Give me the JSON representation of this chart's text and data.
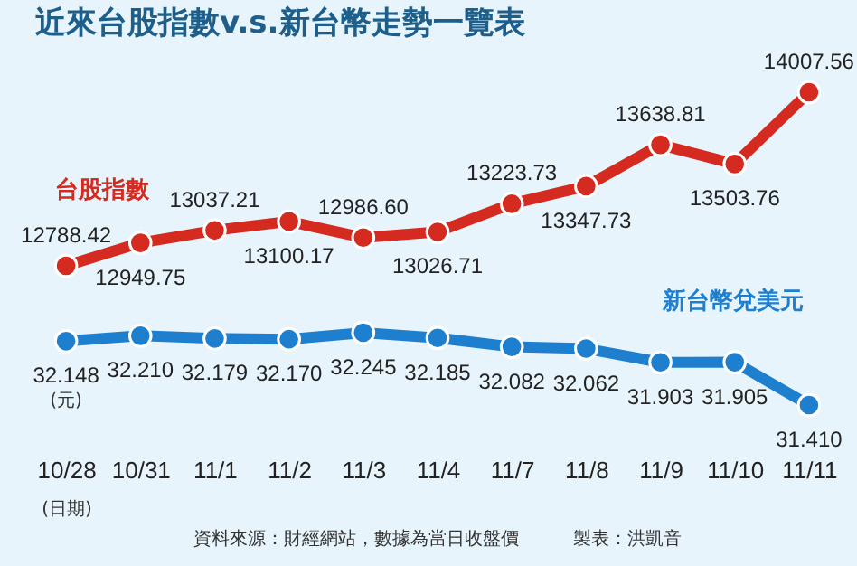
{
  "chart_data": [
    {
      "type": "line",
      "title": "近來台股指數v.s.新台幣走勢一覽表",
      "categories": [
        "10/28",
        "10/31",
        "11/1",
        "11/2",
        "11/3",
        "11/4",
        "11/7",
        "11/8",
        "11/9",
        "11/10",
        "11/11"
      ],
      "series": [
        {
          "name": "台股指數",
          "color": "#d42a1f",
          "values": [
            12788.42,
            12949.75,
            13037.21,
            13100.17,
            12986.6,
            13026.71,
            13223.73,
            13347.73,
            13638.81,
            13503.76,
            14007.56
          ],
          "value_labels": [
            "12788.42",
            "12949.75",
            "13037.21",
            "13100.17",
            "12986.60",
            "13026.71",
            "13223.73",
            "13347.73",
            "13638.81",
            "13503.76",
            "14007.56"
          ]
        }
      ],
      "marker": "circle",
      "tick_labels": false
    },
    {
      "type": "line",
      "xlabel": "(日期)",
      "categories": [
        "10/28",
        "10/31",
        "11/1",
        "11/2",
        "11/3",
        "11/4",
        "11/7",
        "11/8",
        "11/9",
        "11/10",
        "11/11"
      ],
      "series": [
        {
          "name": "新台幣兌美元",
          "color": "#1f7fcf",
          "values": [
            32.148,
            32.21,
            32.179,
            32.17,
            32.245,
            32.185,
            32.082,
            32.062,
            31.903,
            31.905,
            31.41
          ],
          "value_labels": [
            "32.148",
            "32.210",
            "32.179",
            "32.170",
            "32.245",
            "32.185",
            "32.082",
            "32.062",
            "31.903",
            "31.905",
            "31.410"
          ]
        }
      ],
      "marker": "circle",
      "annotations": [
        "(元)",
        "資料來源：財經網站，數據為當日收盤價",
        "製表：洪凱音"
      ]
    }
  ]
}
